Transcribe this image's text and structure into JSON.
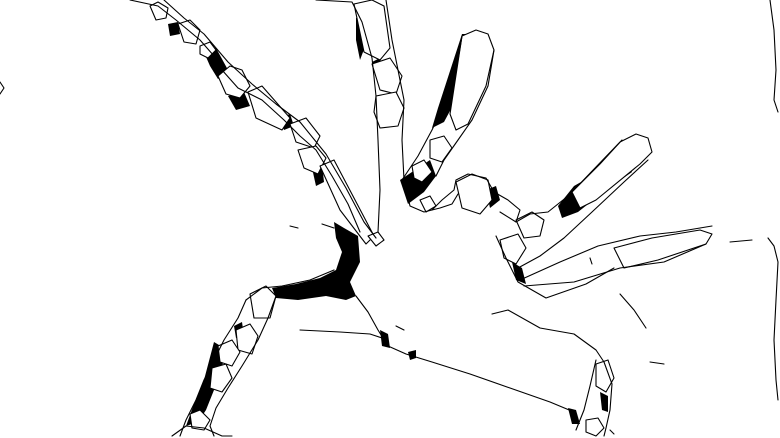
{
  "image": {
    "kind": "segmentation edge map",
    "background_color": "#ffffff",
    "line_color": "#000000",
    "fill_color": "#000000"
  }
}
